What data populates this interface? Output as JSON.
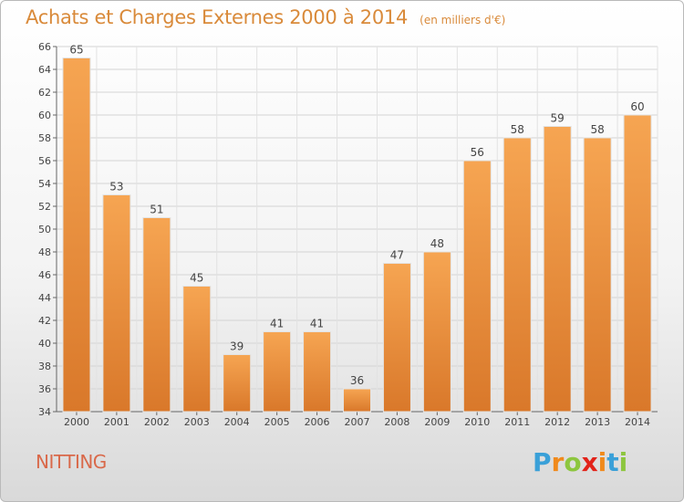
{
  "title": "Achats et Charges Externes 2000 à 2014",
  "subtitle": "(en milliers d'€)",
  "city": "NITTING",
  "logo": {
    "letters": [
      "P",
      "r",
      "o",
      "x",
      "i",
      "t",
      "i"
    ],
    "colors": [
      "#3aa0d8",
      "#f08a1c",
      "#8dc63f",
      "#e2231a",
      "#f08a1c",
      "#3aa0d8",
      "#8dc63f"
    ]
  },
  "colors": {
    "bar_top": "#f6a552",
    "bar_bottom": "#d9782a",
    "title": "#d98a3a",
    "city": "#d9694a"
  },
  "chart_data": {
    "type": "bar",
    "categories": [
      "2000",
      "2001",
      "2002",
      "2003",
      "2004",
      "2005",
      "2006",
      "2007",
      "2008",
      "2009",
      "2010",
      "2011",
      "2012",
      "2013",
      "2014"
    ],
    "values": [
      65,
      53,
      51,
      45,
      39,
      41,
      41,
      36,
      47,
      48,
      56,
      58,
      59,
      58,
      60
    ],
    "ylim": [
      34,
      66
    ],
    "yticks": [
      34,
      36,
      38,
      40,
      42,
      44,
      46,
      48,
      50,
      52,
      54,
      56,
      58,
      60,
      62,
      64,
      66
    ],
    "grid": true
  }
}
